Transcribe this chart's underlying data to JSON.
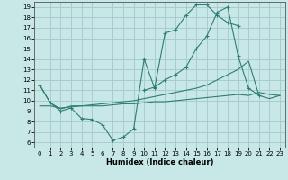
{
  "xlabel": "Humidex (Indice chaleur)",
  "background_color": "#c8e8e8",
  "grid_color": "#aacccc",
  "line_color": "#2e7d72",
  "xlim": [
    -0.5,
    23.5
  ],
  "ylim": [
    5.5,
    19.5
  ],
  "xticks": [
    0,
    1,
    2,
    3,
    4,
    5,
    6,
    7,
    8,
    9,
    10,
    11,
    12,
    13,
    14,
    15,
    16,
    17,
    18,
    19,
    20,
    21,
    22,
    23
  ],
  "yticks": [
    6,
    7,
    8,
    9,
    10,
    11,
    12,
    13,
    14,
    15,
    16,
    17,
    18,
    19
  ],
  "line1_x": [
    0,
    1,
    2,
    3,
    4,
    5,
    6,
    7,
    8,
    9,
    10,
    11,
    12,
    13,
    14,
    15,
    16,
    17,
    18,
    19
  ],
  "line1_y": [
    11.5,
    9.8,
    9.0,
    9.3,
    8.3,
    8.2,
    7.7,
    6.2,
    6.5,
    7.3,
    14.0,
    11.2,
    16.5,
    16.8,
    18.2,
    19.2,
    19.2,
    18.2,
    17.5,
    17.2
  ],
  "line2_x": [
    0,
    1,
    2,
    3,
    4,
    5,
    6,
    7,
    8,
    9,
    10,
    11,
    12,
    13,
    14,
    15,
    16,
    17,
    18,
    19,
    20,
    21,
    22,
    23
  ],
  "line2_y": [
    11.5,
    9.8,
    9.2,
    9.5,
    9.5,
    9.6,
    9.7,
    9.8,
    9.9,
    10.0,
    10.2,
    10.4,
    10.6,
    10.8,
    11.0,
    11.2,
    11.5,
    12.0,
    12.5,
    13.0,
    13.8,
    10.5,
    10.2,
    10.5
  ],
  "line3_x": [
    10,
    11,
    12,
    13,
    14,
    15,
    16,
    17,
    18,
    19,
    20,
    21
  ],
  "line3_y": [
    11.0,
    11.3,
    12.0,
    12.5,
    13.2,
    15.0,
    16.2,
    18.5,
    19.0,
    14.3,
    11.2,
    10.5
  ],
  "line4_x": [
    0,
    1,
    2,
    3,
    4,
    5,
    6,
    7,
    8,
    9,
    10,
    11,
    12,
    13,
    14,
    15,
    16,
    17,
    18,
    19,
    20,
    21,
    22,
    23
  ],
  "line4_y": [
    9.5,
    9.5,
    9.3,
    9.4,
    9.5,
    9.5,
    9.5,
    9.6,
    9.7,
    9.7,
    9.8,
    9.9,
    9.9,
    10.0,
    10.1,
    10.2,
    10.3,
    10.4,
    10.5,
    10.6,
    10.5,
    10.8,
    10.6,
    10.5
  ]
}
